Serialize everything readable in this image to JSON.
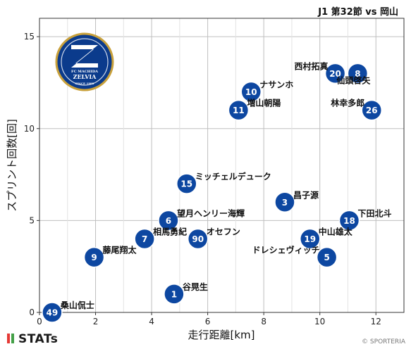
{
  "match_title": "J1 第32節 vs 岡山",
  "brand": "STATs",
  "copyright": "© SPORTERIA",
  "logo": {
    "text_lines": [
      "FC MACHIDA",
      "ZELVIA",
      "SINCE 1989"
    ],
    "primary_color": "#0b3b8c",
    "accent_color": "#c9a13b"
  },
  "colors": {
    "point_fill": "#0d47a1",
    "point_text": "#ffffff",
    "grid": "#bfbfbf",
    "axis": "#333333"
  },
  "chart_data": {
    "type": "scatter",
    "title": "",
    "xlabel": "走行距離[km]",
    "ylabel": "スプリント回数[回]",
    "xlim": [
      0,
      13
    ],
    "ylim": [
      0,
      16
    ],
    "xticks": [
      0,
      2,
      4,
      6,
      8,
      10,
      12
    ],
    "yticks": [
      0,
      5,
      10,
      15
    ],
    "grid": true,
    "points": [
      {
        "number": "20",
        "name": "西村拓真",
        "x": 10.55,
        "y": 13,
        "label_side": "left"
      },
      {
        "number": "8",
        "name": "仙頭啓矢",
        "x": 11.35,
        "y": 13,
        "label_side": "below-left"
      },
      {
        "number": "10",
        "name": "ナサンホ",
        "x": 7.55,
        "y": 12,
        "label_side": "right"
      },
      {
        "number": "11",
        "name": "増山朝陽",
        "x": 7.1,
        "y": 11,
        "label_side": "right"
      },
      {
        "number": "26",
        "name": "林幸多郎",
        "x": 11.85,
        "y": 11,
        "label_side": "left"
      },
      {
        "number": "15",
        "name": "ミッチェルデューク",
        "x": 5.25,
        "y": 7,
        "label_side": "right"
      },
      {
        "number": "3",
        "name": "昌子源",
        "x": 8.75,
        "y": 6,
        "label_side": "right"
      },
      {
        "number": "6",
        "name": "望月ヘンリー海輝",
        "x": 4.6,
        "y": 5,
        "label_side": "right"
      },
      {
        "number": "18",
        "name": "下田北斗",
        "x": 11.05,
        "y": 5,
        "label_side": "right"
      },
      {
        "number": "7",
        "name": "相馬勇紀",
        "x": 3.75,
        "y": 4,
        "label_side": "right"
      },
      {
        "number": "90",
        "name": "オセフン",
        "x": 5.65,
        "y": 4,
        "label_side": "right"
      },
      {
        "number": "19",
        "name": "中山雄太",
        "x": 9.65,
        "y": 4,
        "label_side": "right"
      },
      {
        "number": "9",
        "name": "藤尾翔太",
        "x": 1.95,
        "y": 3,
        "label_side": "right"
      },
      {
        "number": "5",
        "name": "ドレシェヴィッチ",
        "x": 10.25,
        "y": 3,
        "label_side": "left"
      },
      {
        "number": "1",
        "name": "谷晃生",
        "x": 4.8,
        "y": 1,
        "label_side": "right"
      },
      {
        "number": "49",
        "name": "桑山侃士",
        "x": 0.45,
        "y": 0,
        "label_side": "right"
      }
    ]
  }
}
